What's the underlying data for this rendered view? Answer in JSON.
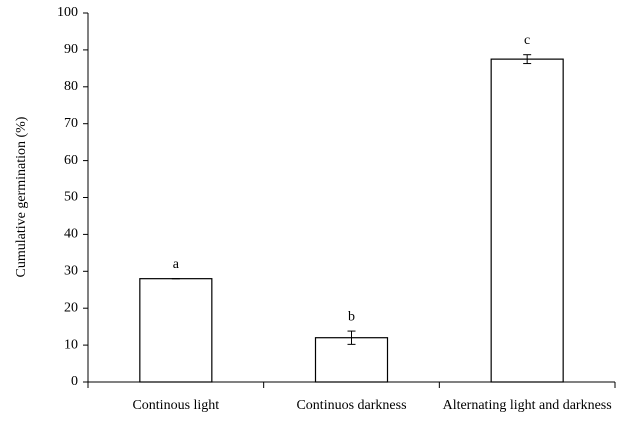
{
  "chart_data": {
    "type": "bar",
    "ylabel": "Cumulative germination (%)",
    "categories": [
      "Continous light",
      "Continuos darkness",
      "Alternating light and darkness"
    ],
    "values": [
      28,
      12,
      87.5
    ],
    "errors": [
      0,
      1.8,
      1.2
    ],
    "annotations": [
      "a",
      "b",
      "c"
    ],
    "color": "#ffffff",
    "ylim": [
      0,
      100
    ],
    "yticks": [
      0,
      10,
      20,
      30,
      40,
      50,
      60,
      70,
      80,
      90,
      100
    ],
    "grid": false
  }
}
